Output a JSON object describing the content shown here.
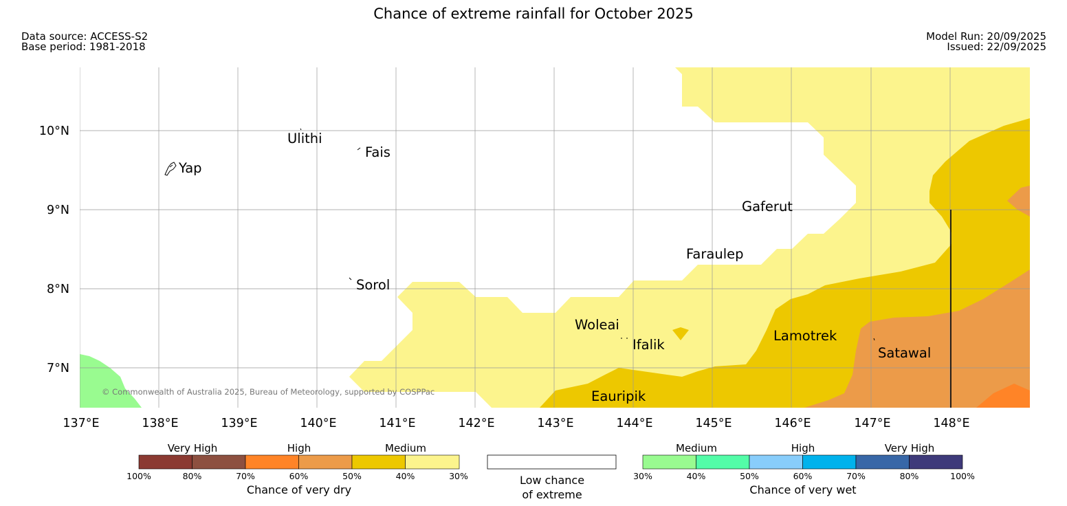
{
  "title": "Chance of extreme rainfall for October 2025",
  "data_source": "Data source: ACCESS-S2",
  "base_period": "Base period: 1981-2018",
  "model_run": "Model Run: 20/09/2025",
  "issued": "Issued: 22/09/2025",
  "copyright": "© Commonwealth of Australia 2025, Bureau of Meteorology, supported by COSPPac",
  "map": {
    "lon_labels": [
      "137°E",
      "138°E",
      "139°E",
      "140°E",
      "141°E",
      "142°E",
      "143°E",
      "144°E",
      "145°E",
      "146°E",
      "147°E",
      "148°E"
    ],
    "lat_labels": [
      "10°N",
      "9°N",
      "8°N",
      "7°N"
    ],
    "places": {
      "yap": "Yap",
      "ulithi": "Ulithi",
      "fais": "Fais",
      "sorol": "Sorol",
      "gaferut": "Gaferut",
      "faraulep": "Faraulep",
      "woleai": "Woleai",
      "ifalik": "Ifalik",
      "lamotrek": "Lamotrek",
      "satawal": "Satawal",
      "eauripik": "Eauripik"
    }
  },
  "legend": {
    "dry": {
      "category_very_high": "Very High",
      "category_high": "High",
      "category_medium": "Medium",
      "ticks": [
        "100%",
        "80%",
        "70%",
        "60%",
        "50%",
        "40%",
        "30%"
      ],
      "colors": [
        "#8b3a32",
        "#8d5040",
        "#ff8427",
        "#ec9b49",
        "#edc800",
        "#fcf48d"
      ],
      "label": "Chance of very dry"
    },
    "low": {
      "line1": "Low chance",
      "line2": "of extreme"
    },
    "wet": {
      "category_medium": "Medium",
      "category_high": "High",
      "category_very_high": "Very High",
      "ticks": [
        "30%",
        "40%",
        "50%",
        "60%",
        "70%",
        "80%",
        "100%"
      ],
      "colors": [
        "#99fb90",
        "#53fca8",
        "#88cdfb",
        "#00b2ec",
        "#3867a7",
        "#3e3a7a"
      ],
      "label": "Chance of very wet"
    }
  }
}
